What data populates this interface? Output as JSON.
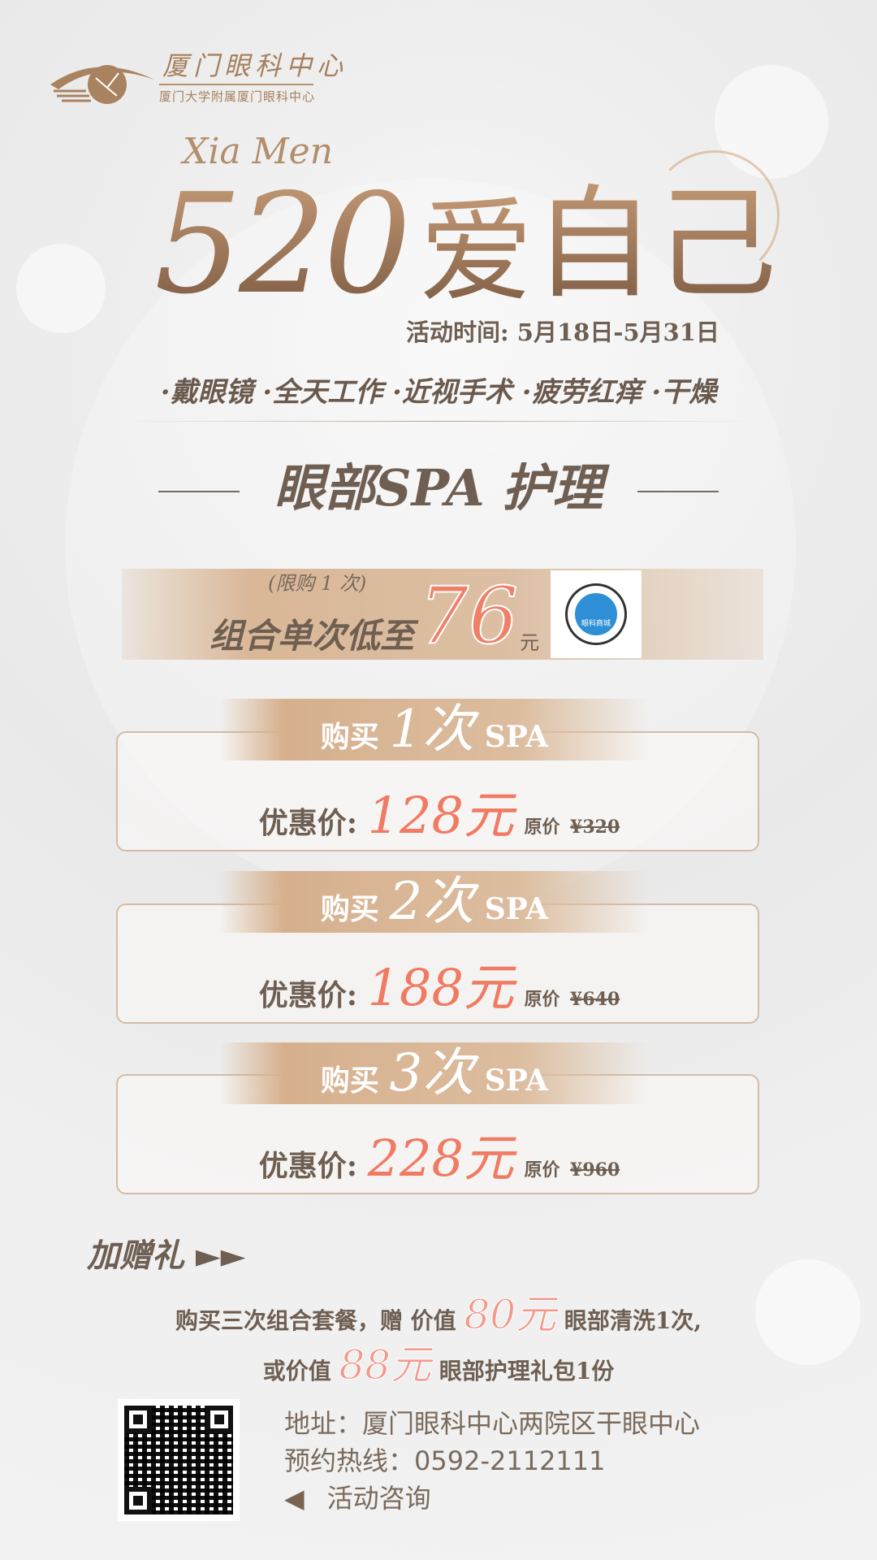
{
  "logo": {
    "title": "厦门眼科中心",
    "subtitle": "厦门大学附属厦门眼科中心"
  },
  "hero": {
    "script": "Xia Men",
    "number": "520",
    "word1": "爱",
    "word2": "自己",
    "date": "活动时间: 5月18日-5月31日"
  },
  "tags": "·戴眼镜 ·全天工作 ·近视手术 ·疲劳红痒 ·干燥",
  "heading": "眼部SPA 护理",
  "promo": {
    "note": "(限购 1 次)",
    "main": "组合单次低至",
    "price": "76",
    "unit": "元",
    "qr_label": "眼科商城"
  },
  "cards": [
    {
      "prefix": "购买",
      "count": "1次",
      "suffix": "SPA",
      "label": "优惠价:",
      "price": "128元",
      "orig_label": "原价",
      "orig": "¥320"
    },
    {
      "prefix": "购买",
      "count": "2次",
      "suffix": "SPA",
      "label": "优惠价:",
      "price": "188元",
      "orig_label": "原价",
      "orig": "¥640"
    },
    {
      "prefix": "购买",
      "count": "3次",
      "suffix": "SPA",
      "label": "优惠价:",
      "price": "228元",
      "orig_label": "原价",
      "orig": "¥960"
    }
  ],
  "gift": {
    "title": "加赠礼 ►►",
    "line1_a": "购买三次组合套餐，赠 价值",
    "line1_price": "80元",
    "line1_b": "眼部清洗1次,",
    "line2_a": "或价值",
    "line2_price": "88元",
    "line2_b": "眼部护理礼包1份"
  },
  "contact": {
    "address": "地址：厦门眼科中心两院区干眼中心",
    "hotline": "预约热线：0592-2112111",
    "consult": "活动咨询"
  },
  "colors": {
    "accent": "#f07a62",
    "gold": "#b58c67",
    "text": "#6f5f52"
  }
}
